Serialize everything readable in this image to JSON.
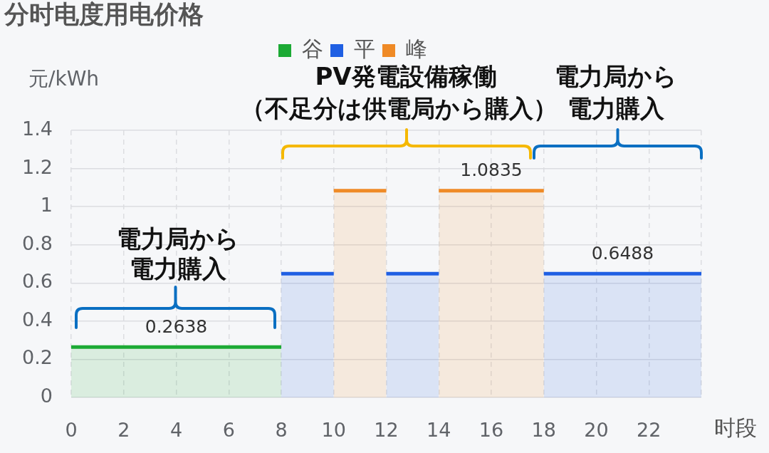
{
  "chart_data": {
    "type": "area",
    "title": "分时电度用电价格",
    "xlabel": "时段",
    "ylabel": "元/kWh",
    "xlim": [
      0,
      24
    ],
    "xticks": [
      0,
      2,
      4,
      6,
      8,
      10,
      12,
      14,
      16,
      18,
      20,
      22,
      {
        "value": 24,
        "label": null
      }
    ],
    "ylim": [
      0,
      1.4
    ],
    "yticks": [
      0,
      0.2,
      0.4,
      0.6,
      0.8,
      1,
      1.2,
      1.4
    ],
    "grid": true,
    "legend": "top",
    "series": [
      {
        "name": "谷",
        "color": "#1caa35",
        "x": [
          0,
          4,
          8
        ],
        "values": [
          0.2638,
          0.2638,
          0.2638
        ],
        "value_labels": [
          null,
          "0.2638",
          null
        ]
      },
      {
        "name": "平",
        "color": "#1f5fe3",
        "x": [
          8,
          10,
          11,
          12,
          14,
          16,
          18,
          21,
          24
        ],
        "values": [
          0.6488,
          0.6488,
          null,
          0.6488,
          0.6488,
          null,
          0.6488,
          0.6488,
          0.6488
        ],
        "value_labels": [
          null,
          null,
          null,
          null,
          null,
          null,
          null,
          "0.6488",
          null
        ]
      },
      {
        "name": "峰",
        "color": "#ef8a26",
        "x": [
          10,
          12,
          13,
          14,
          16,
          18
        ],
        "values": [
          1.0835,
          1.0835,
          null,
          1.0835,
          1.0835,
          1.0835
        ],
        "value_labels": [
          null,
          null,
          null,
          null,
          "1.0835",
          null
        ]
      }
    ],
    "annotations": [
      "PV発電設備稼働",
      "（不足分は供電局から購入）",
      "電力局から電力購入",
      "電力局から電力購入"
    ]
  }
}
